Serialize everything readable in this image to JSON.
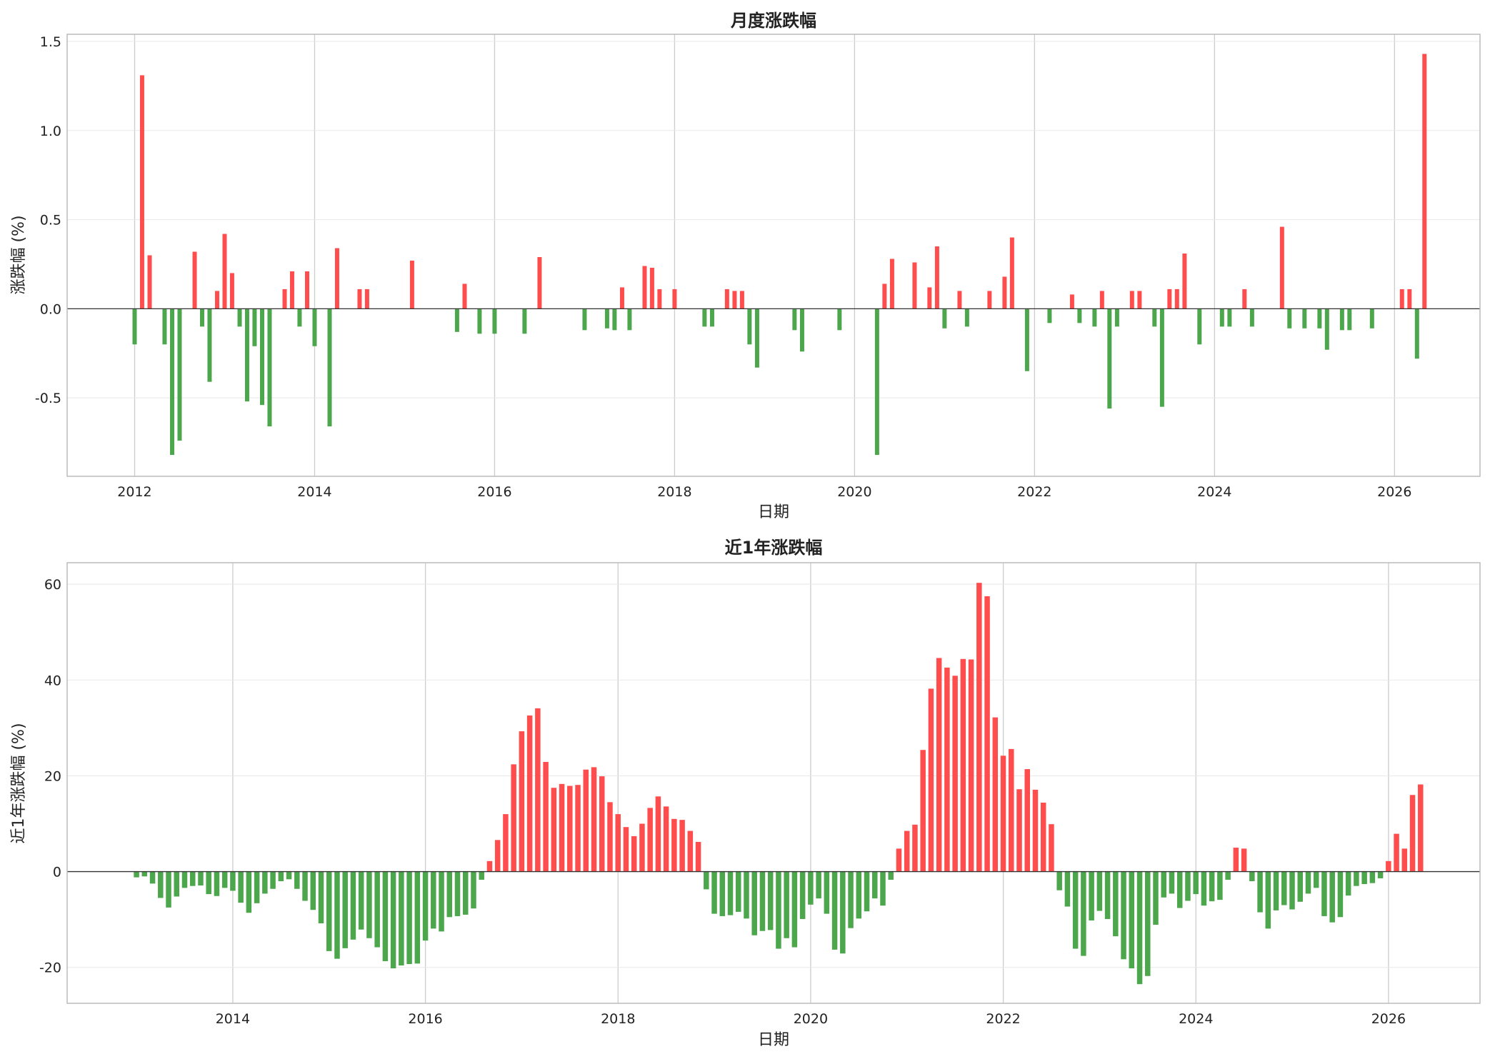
{
  "colors": {
    "up": "#ff4d4d",
    "down": "#4ca64c",
    "grid": "#cccccc",
    "zero_line": "#333333",
    "frame": "#bbbbbb"
  },
  "chart_data": [
    {
      "type": "bar",
      "title": "月度涨跌幅",
      "xlabel": "日期",
      "ylabel": "涨跌幅 (%)",
      "xlim": [
        2011.25,
        2026.95
      ],
      "ylim": [
        -0.94,
        1.54
      ],
      "x_ticks": [
        2012,
        2014,
        2016,
        2018,
        2020,
        2022,
        2024,
        2026
      ],
      "x_tick_labels": [
        "2012",
        "2014",
        "2016",
        "2018",
        "2020",
        "2022",
        "2024",
        "2026"
      ],
      "y_ticks": [
        -0.5,
        0.0,
        0.5,
        1.0,
        1.5
      ],
      "y_tick_labels": [
        "-0.5",
        "0.0",
        "0.5",
        "1.0",
        "1.5"
      ],
      "grid": true,
      "x": [
        2012.0,
        2012.083,
        2012.167,
        2012.333,
        2012.417,
        2012.5,
        2012.667,
        2012.75,
        2012.833,
        2012.917,
        2013.0,
        2013.083,
        2013.167,
        2013.25,
        2013.333,
        2013.417,
        2013.5,
        2013.667,
        2013.75,
        2013.833,
        2013.917,
        2014.0,
        2014.167,
        2014.25,
        2014.5,
        2014.583,
        2015.083,
        2015.583,
        2015.667,
        2015.833,
        2016.0,
        2016.333,
        2016.5,
        2017.0,
        2017.25,
        2017.333,
        2017.417,
        2017.5,
        2017.667,
        2017.75,
        2017.833,
        2018.0,
        2018.333,
        2018.417,
        2018.583,
        2018.667,
        2018.75,
        2018.833,
        2018.917,
        2019.333,
        2019.417,
        2019.833,
        2020.25,
        2020.333,
        2020.417,
        2020.667,
        2020.833,
        2020.917,
        2021.0,
        2021.167,
        2021.25,
        2021.5,
        2021.667,
        2021.75,
        2021.917,
        2022.167,
        2022.417,
        2022.5,
        2022.667,
        2022.75,
        2022.833,
        2022.917,
        2023.083,
        2023.167,
        2023.333,
        2023.417,
        2023.5,
        2023.583,
        2023.667,
        2023.833,
        2024.083,
        2024.167,
        2024.333,
        2024.417,
        2024.75,
        2024.833,
        2025.0,
        2025.167,
        2025.25,
        2025.417,
        2025.5,
        2025.75,
        2026.083,
        2026.167,
        2026.25
      ],
      "values": [
        -0.2,
        1.31,
        0.3,
        -0.2,
        -0.82,
        -0.74,
        0.32,
        -0.1,
        -0.41,
        0.1,
        0.42,
        0.2,
        -0.1,
        -0.52,
        -0.21,
        -0.54,
        -0.66,
        0.11,
        0.21,
        -0.1,
        0.21,
        -0.21,
        -0.66,
        0.34,
        0.11,
        0.11,
        0.27,
        -0.13,
        0.14,
        -0.14,
        -0.14,
        -0.14,
        0.29,
        -0.12,
        -0.11,
        -0.12,
        0.12,
        -0.12,
        0.24,
        0.23,
        0.11,
        0.11,
        -0.1,
        -0.1,
        0.11,
        0.1,
        0.1,
        -0.2,
        -0.33,
        -0.12,
        -0.24,
        -0.12,
        -0.82,
        0.14,
        0.28,
        0.26,
        0.12,
        0.35,
        -0.11,
        0.1,
        -0.1,
        0.1,
        0.18,
        0.4,
        -0.35,
        -0.08,
        0.08,
        -0.08,
        -0.1,
        0.1,
        -0.56,
        -0.1,
        0.1,
        0.1,
        -0.1,
        -0.55,
        0.11,
        0.11,
        0.31,
        -0.2,
        -0.1,
        -0.1,
        0.11,
        -0.1,
        0.46,
        -0.11,
        -0.11,
        -0.11,
        -0.23,
        -0.12,
        -0.12,
        -0.11,
        0.11,
        0.11,
        -0.28
      ],
      "extra_bar": {
        "x": 2026.333,
        "value": 1.43
      }
    },
    {
      "type": "bar",
      "title": "近1年涨跌幅",
      "xlabel": "日期",
      "ylabel": "近1年涨跌幅 (%)",
      "xlim": [
        2012.28,
        2026.95
      ],
      "ylim": [
        -27.5,
        64.5
      ],
      "x_ticks": [
        2014,
        2016,
        2018,
        2020,
        2022,
        2024,
        2026
      ],
      "x_tick_labels": [
        "2014",
        "2016",
        "2018",
        "2020",
        "2022",
        "2024",
        "2026"
      ],
      "y_ticks": [
        -20,
        0,
        20,
        40,
        60
      ],
      "y_tick_labels": [
        "-20",
        "0",
        "20",
        "40",
        "60"
      ],
      "grid": true,
      "x_start": 2013.0,
      "x_step": 0.08333,
      "values": [
        -1.2,
        -1,
        -2.5,
        -5.5,
        -7.5,
        -5.2,
        -3.4,
        -3,
        -2.9,
        -4.7,
        -5.1,
        -3.4,
        -4,
        -6.5,
        -8.6,
        -6.6,
        -4.6,
        -3.6,
        -2,
        -1.6,
        -3.6,
        -6.1,
        -8,
        -10.8,
        -16.6,
        -18.2,
        -16,
        -14.2,
        -12.1,
        -13.9,
        -15.8,
        -18.7,
        -20.2,
        -19.6,
        -19.3,
        -19.2,
        -14.4,
        -11.9,
        -12.5,
        -9.5,
        -9.3,
        -9,
        -7.7,
        -1.7,
        2.2,
        6.6,
        12,
        22.4,
        29.3,
        32.6,
        34.1,
        22.9,
        17.5,
        18.3,
        17.9,
        18.1,
        21.3,
        21.8,
        19.9,
        14.5,
        12,
        9.3,
        7.4,
        10,
        13.3,
        15.7,
        13.6,
        11,
        10.8,
        8.5,
        6.2,
        -3.7,
        -8.8,
        -9.3,
        -9.1,
        -8.4,
        -9.8,
        -13.3,
        -12.4,
        -12.2,
        -16.1,
        -13.9,
        -15.8,
        -9.9,
        -6.9,
        -5.6,
        -8.8,
        -16.3,
        -17.1,
        -11.8,
        -9.8,
        -8.3,
        -5.6,
        -7.1,
        -1.7,
        4.8,
        8.5,
        9.8,
        25.4,
        38.2,
        44.6,
        42.6,
        40.9,
        44.4,
        44.3,
        60.3,
        57.5,
        32.2,
        24.2,
        25.6,
        17.2,
        21.4,
        17.1,
        14.4,
        9.9,
        -3.9,
        -7.3,
        -16.1,
        -17.6,
        -10.2,
        -8.2,
        -9.9,
        -13.5,
        -18.3,
        -20.2,
        -23.5,
        -21.8,
        -11.1,
        -5.4,
        -4.6,
        -7.6,
        -6.1,
        -4.7,
        -7.1,
        -6.2,
        -5.9,
        -1.7,
        5,
        4.8,
        -2,
        -8.5,
        -11.9,
        -8.1,
        -7,
        -7.9,
        -6.3,
        -4.6,
        -3.4,
        -9.3,
        -10.6,
        -9.5,
        -5,
        -3,
        -2.6,
        -2.4,
        -1.4,
        2.2,
        7.9,
        4.8,
        16,
        18.2
      ]
    }
  ]
}
